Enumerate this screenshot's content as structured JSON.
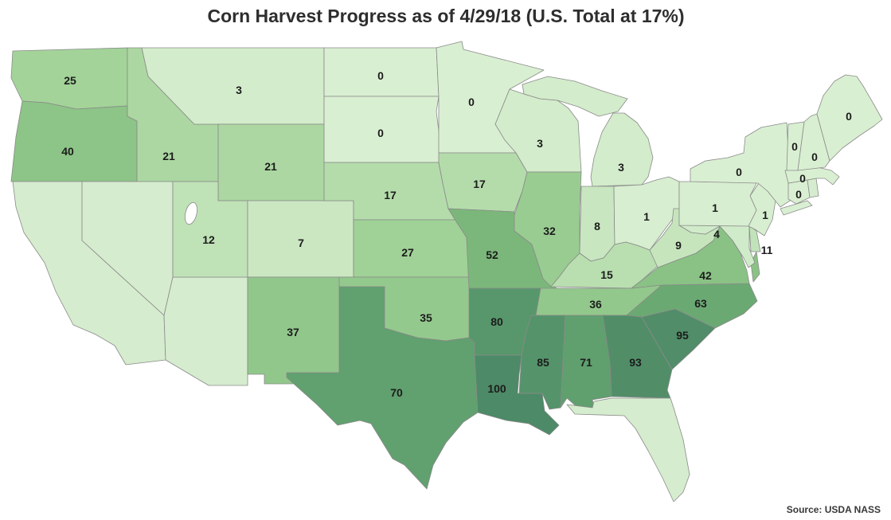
{
  "title": "Corn Harvest Progress as of 4/29/18 (U.S. Total at 17%)",
  "source": "Source: USDA NASS",
  "chart_data": {
    "type": "choropleth-map",
    "region": "United States (contiguous 48 states)",
    "metric": "Corn harvest progress, percent complete",
    "as_of_date": "4/29/18",
    "us_total_percent": 17,
    "legend_position": "none",
    "color_scale": {
      "type": "sequential-green",
      "domain": [
        0,
        100
      ],
      "stops": [
        "#d9efd2",
        "#a3d399",
        "#7eba7b",
        "#5a9a6c",
        "#4d8a67"
      ],
      "no_data_color": "#d5ecce",
      "border_color": "#8a8a8a"
    },
    "states": [
      {
        "abbr": "WA",
        "name": "Washington",
        "value": 25
      },
      {
        "abbr": "OR",
        "name": "Oregon",
        "value": 40
      },
      {
        "abbr": "CA",
        "name": "California",
        "value": null
      },
      {
        "abbr": "ID",
        "name": "Idaho",
        "value": 21
      },
      {
        "abbr": "NV",
        "name": "Nevada",
        "value": null
      },
      {
        "abbr": "AZ",
        "name": "Arizona",
        "value": null
      },
      {
        "abbr": "MT",
        "name": "Montana",
        "value": 3
      },
      {
        "abbr": "WY",
        "name": "Wyoming",
        "value": 21
      },
      {
        "abbr": "UT",
        "name": "Utah",
        "value": 12
      },
      {
        "abbr": "CO",
        "name": "Colorado",
        "value": 7
      },
      {
        "abbr": "NM",
        "name": "New Mexico",
        "value": 37
      },
      {
        "abbr": "ND",
        "name": "North Dakota",
        "value": 0
      },
      {
        "abbr": "SD",
        "name": "South Dakota",
        "value": 0
      },
      {
        "abbr": "NE",
        "name": "Nebraska",
        "value": 17
      },
      {
        "abbr": "KS",
        "name": "Kansas",
        "value": 27
      },
      {
        "abbr": "OK",
        "name": "Oklahoma",
        "value": 35
      },
      {
        "abbr": "TX",
        "name": "Texas",
        "value": 70
      },
      {
        "abbr": "MN",
        "name": "Minnesota",
        "value": 0
      },
      {
        "abbr": "IA",
        "name": "Iowa",
        "value": 17
      },
      {
        "abbr": "MO",
        "name": "Missouri",
        "value": 52
      },
      {
        "abbr": "AR",
        "name": "Arkansas",
        "value": 80
      },
      {
        "abbr": "LA",
        "name": "Louisiana",
        "value": 100
      },
      {
        "abbr": "WI",
        "name": "Wisconsin",
        "value": 3
      },
      {
        "abbr": "IL",
        "name": "Illinois",
        "value": 32
      },
      {
        "abbr": "MI",
        "name": "Michigan",
        "value": 3
      },
      {
        "abbr": "IN",
        "name": "Indiana",
        "value": 8
      },
      {
        "abbr": "OH",
        "name": "Ohio",
        "value": 1
      },
      {
        "abbr": "KY",
        "name": "Kentucky",
        "value": 15
      },
      {
        "abbr": "TN",
        "name": "Tennessee",
        "value": 36
      },
      {
        "abbr": "MS",
        "name": "Mississippi",
        "value": 85
      },
      {
        "abbr": "AL",
        "name": "Alabama",
        "value": 71
      },
      {
        "abbr": "GA",
        "name": "Georgia",
        "value": 93
      },
      {
        "abbr": "FL",
        "name": "Florida",
        "value": null
      },
      {
        "abbr": "SC",
        "name": "South Carolina",
        "value": 95
      },
      {
        "abbr": "NC",
        "name": "North Carolina",
        "value": 63
      },
      {
        "abbr": "VA",
        "name": "Virginia",
        "value": 42
      },
      {
        "abbr": "WV",
        "name": "West Virginia",
        "value": 9
      },
      {
        "abbr": "MD",
        "name": "Maryland",
        "value": 4
      },
      {
        "abbr": "DE",
        "name": "Delaware",
        "value": 11
      },
      {
        "abbr": "NJ",
        "name": "New Jersey",
        "value": 1
      },
      {
        "abbr": "PA",
        "name": "Pennsylvania",
        "value": 1
      },
      {
        "abbr": "NY",
        "name": "New York",
        "value": 0
      },
      {
        "abbr": "CT",
        "name": "Connecticut",
        "value": 0
      },
      {
        "abbr": "RI",
        "name": "Rhode Island",
        "value": null
      },
      {
        "abbr": "MA",
        "name": "Massachusetts",
        "value": 0
      },
      {
        "abbr": "VT",
        "name": "Vermont",
        "value": 0
      },
      {
        "abbr": "NH",
        "name": "New Hampshire",
        "value": 0
      },
      {
        "abbr": "ME",
        "name": "Maine",
        "value": 0
      }
    ]
  }
}
